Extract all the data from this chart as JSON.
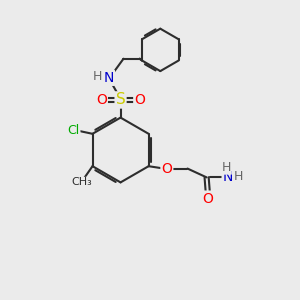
{
  "bg_color": "#ebebeb",
  "bond_color": "#2d2d2d",
  "bond_width": 1.5,
  "atom_colors": {
    "N": "#0000cc",
    "S": "#cccc00",
    "O": "#ff0000",
    "Cl": "#00aa00",
    "C": "#2d2d2d",
    "H": "#666666"
  },
  "figsize": [
    3.0,
    3.0
  ],
  "dpi": 100,
  "xlim": [
    0,
    10
  ],
  "ylim": [
    0,
    10
  ]
}
